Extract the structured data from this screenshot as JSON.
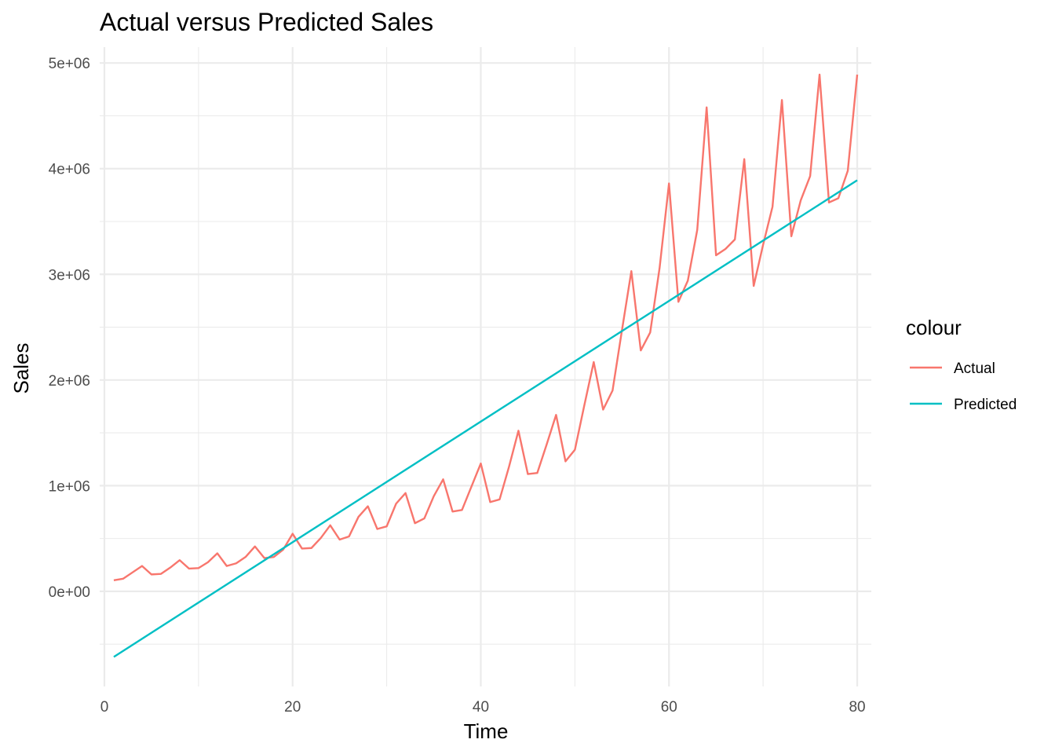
{
  "chart_data": {
    "type": "line",
    "title": "Actual versus Predicted Sales",
    "xlabel": "Time",
    "ylabel": "Sales",
    "xlim": [
      -0.5,
      81.5
    ],
    "ylim": [
      -900000,
      5150000
    ],
    "x_ticks": [
      0,
      20,
      40,
      60,
      80
    ],
    "x_tick_labels": [
      "0",
      "20",
      "40",
      "60",
      "80"
    ],
    "y_ticks": [
      0,
      1000000,
      2000000,
      3000000,
      4000000,
      5000000
    ],
    "y_tick_labels": [
      "0e+00",
      "1e+06",
      "2e+06",
      "3e+06",
      "4e+06",
      "5e+06"
    ],
    "grid": true,
    "legend": {
      "title": "colour",
      "placement": "right"
    },
    "series": [
      {
        "name": "Actual",
        "color": "#F8766D",
        "x": [
          1,
          2,
          3,
          4,
          5,
          6,
          7,
          8,
          9,
          10,
          11,
          12,
          13,
          14,
          15,
          16,
          17,
          18,
          19,
          20,
          21,
          22,
          23,
          24,
          25,
          26,
          27,
          28,
          29,
          30,
          31,
          32,
          33,
          34,
          35,
          36,
          37,
          38,
          39,
          40,
          41,
          42,
          43,
          44,
          45,
          46,
          47,
          48,
          49,
          50,
          51,
          52,
          53,
          54,
          55,
          56,
          57,
          58,
          59,
          60,
          61,
          62,
          63,
          64,
          65,
          66,
          67,
          68,
          69,
          70,
          71,
          72,
          73,
          74,
          75,
          76,
          77,
          78,
          79,
          80
        ],
        "y": [
          105000,
          120000,
          180000,
          240000,
          160000,
          165000,
          225000,
          295000,
          215000,
          220000,
          275000,
          360000,
          240000,
          265000,
          325000,
          425000,
          315000,
          325000,
          395000,
          545000,
          405000,
          410000,
          505000,
          625000,
          490000,
          520000,
          705000,
          805000,
          590000,
          615000,
          830000,
          930000,
          645000,
          690000,
          900000,
          1060000,
          755000,
          770000,
          990000,
          1210000,
          845000,
          870000,
          1180000,
          1520000,
          1110000,
          1120000,
          1390000,
          1670000,
          1230000,
          1340000,
          1760000,
          2170000,
          1720000,
          1900000,
          2470000,
          3030000,
          2280000,
          2450000,
          3060000,
          3860000,
          2740000,
          2940000,
          3420000,
          4580000,
          3180000,
          3240000,
          3330000,
          4090000,
          2890000,
          3280000,
          3640000,
          4650000,
          3360000,
          3700000,
          3930000,
          4890000,
          3680000,
          3720000,
          3980000,
          4890000
        ]
      },
      {
        "name": "Predicted",
        "color": "#00BFC4",
        "x": [
          1,
          80
        ],
        "y": [
          -620000,
          3890000
        ]
      }
    ]
  }
}
